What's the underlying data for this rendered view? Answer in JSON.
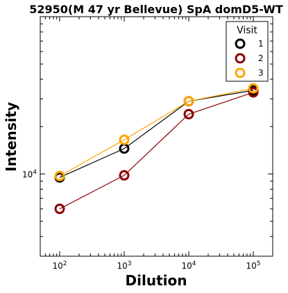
{
  "chart_data": {
    "type": "line",
    "title": "52950(M 47 yr Bellevue) SpA domD5-WT",
    "xlabel": "Dilution",
    "ylabel": "Intensity",
    "x_scale": "log",
    "y_scale": "log",
    "x": [
      100,
      1000,
      10000,
      100000
    ],
    "xlim": [
      50,
      200000
    ],
    "ylim": [
      3000,
      100000
    ],
    "x_tick_labels": [
      {
        "base": "10",
        "exp": "2"
      },
      {
        "base": "10",
        "exp": "3"
      },
      {
        "base": "10",
        "exp": "4"
      },
      {
        "base": "10",
        "exp": "5"
      }
    ],
    "y_tick_labels": [
      {
        "base": "10",
        "exp": "4"
      }
    ],
    "legend": {
      "title": "Visit",
      "position": "top-right"
    },
    "series": [
      {
        "name": "1",
        "color": "#000000",
        "values": [
          9500,
          14500,
          29000,
          34000
        ]
      },
      {
        "name": "2",
        "color": "#8b0000",
        "values": [
          6000,
          9800,
          24000,
          33000
        ]
      },
      {
        "name": "3",
        "color": "#ffa500",
        "values": [
          9700,
          16500,
          29000,
          35000
        ]
      }
    ]
  }
}
